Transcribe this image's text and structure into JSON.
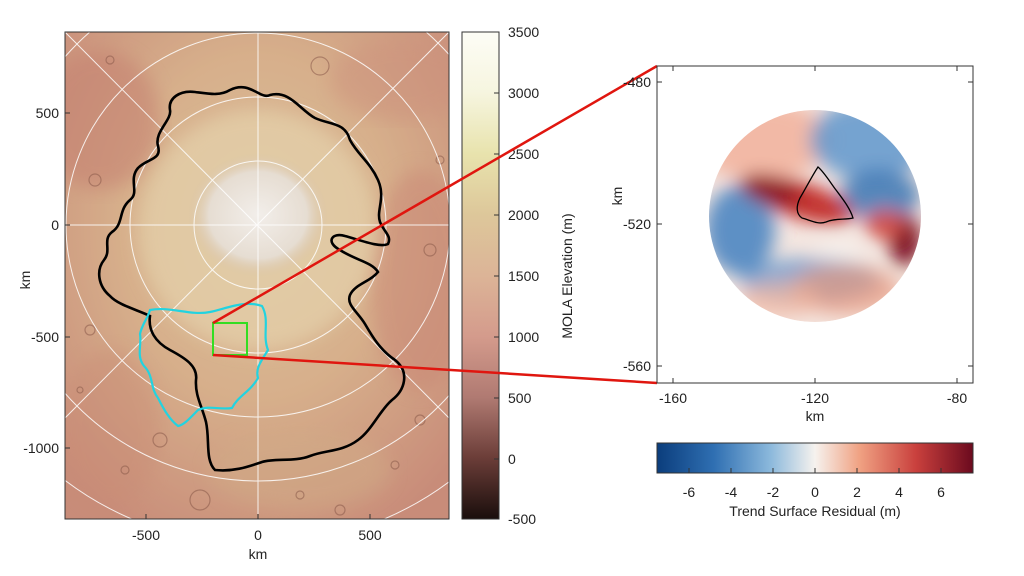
{
  "left_map": {
    "x_ticks": [
      "-500",
      "0",
      "500"
    ],
    "y_ticks": [
      "500",
      "0",
      "-500",
      "-1000"
    ],
    "xlabel": "km",
    "ylabel": "km",
    "outlines": [
      {
        "label": "black-outline",
        "color": "#000000"
      },
      {
        "label": "cyan-outline",
        "color": "#22d3e0"
      },
      {
        "label": "green-box",
        "color": "#33dd22"
      }
    ],
    "grid_color": "#ffffff"
  },
  "elevation_colorbar": {
    "label": "MOLA Elevation (m)",
    "ticks": [
      "3500",
      "3000",
      "2500",
      "2000",
      "1500",
      "1000",
      "500",
      "0",
      "-500"
    ],
    "range": [
      -500,
      3500
    ],
    "colors": [
      "#1a0e0c",
      "#6b3d38",
      "#b07a72",
      "#d49b8c",
      "#dcb497",
      "#ddc79a",
      "#e8e3ad",
      "#f6f5df",
      "#fdfdf6"
    ]
  },
  "inset": {
    "x_ticks": [
      "-160",
      "-120",
      "-80"
    ],
    "y_ticks": [
      "-480",
      "-520",
      "-560"
    ],
    "xlabel": "km",
    "ylabel": "km",
    "zoom_line_color": "#e0160f"
  },
  "residual_colorbar": {
    "label": "Trend Surface Residual (m)",
    "ticks": [
      "-6",
      "-4",
      "-2",
      "0",
      "2",
      "4",
      "6"
    ],
    "range": [
      -7.5,
      7.5
    ],
    "colors": [
      "#0b3d7c",
      "#2f6fb2",
      "#8cb9dc",
      "#f6f2ee",
      "#f0a283",
      "#c9403d",
      "#6b0a1e"
    ]
  }
}
